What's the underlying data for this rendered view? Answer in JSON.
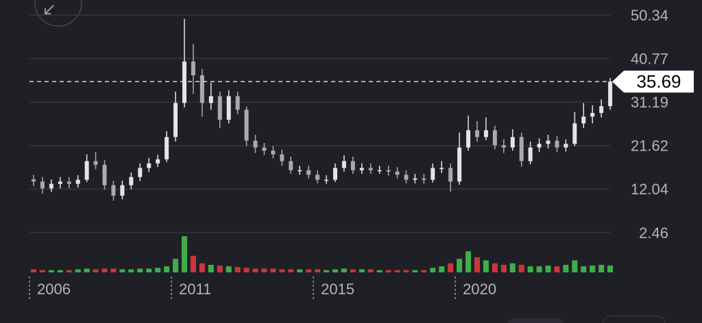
{
  "chart_data": {
    "type": "candlestick",
    "categories": [
      null,
      null,
      null,
      null,
      null,
      null,
      null,
      null,
      null,
      null,
      null,
      null,
      null,
      null,
      null,
      null,
      null,
      null,
      null,
      null,
      null,
      null,
      null,
      null,
      null,
      null,
      null,
      null,
      null,
      null,
      null,
      null,
      null,
      null,
      null,
      null,
      null,
      null,
      null,
      null,
      null,
      null,
      null,
      null,
      null,
      null,
      null,
      null,
      null,
      null,
      null,
      null,
      null,
      null,
      null,
      null,
      null,
      null,
      null,
      null,
      null,
      null,
      null,
      null,
      null,
      null
    ],
    "open": [
      14.2,
      13.7,
      12.2,
      13.2,
      13.7,
      13.2,
      14.1,
      18.2,
      17.4,
      12.9,
      10.6,
      12.9,
      14.7,
      16.7,
      17.7,
      18.6,
      23.5,
      31.0,
      40.1,
      37.1,
      31.0,
      32.5,
      27.3,
      32.5,
      29.5,
      22.7,
      21.2,
      20.5,
      19.7,
      18.2,
      16.2,
      16.2,
      15.2,
      14.1,
      14.1,
      16.7,
      18.2,
      16.2,
      16.7,
      16.2,
      16.2,
      15.9,
      15.2,
      14.1,
      14.4,
      14.1,
      16.7,
      16.7,
      13.7,
      21.2,
      25.0,
      23.5,
      25.0,
      21.7,
      21.2,
      23.5,
      18.2,
      21.2,
      22.0,
      22.7,
      21.2,
      22.0,
      26.5,
      28.0,
      28.8,
      30.3
    ],
    "high": [
      15.2,
      14.7,
      14.2,
      14.7,
      14.7,
      15.1,
      19.7,
      20.2,
      18.4,
      13.9,
      13.9,
      15.7,
      17.7,
      18.9,
      19.6,
      24.8,
      33.5,
      49.5,
      44.0,
      38.5,
      35.5,
      33.5,
      33.8,
      33.5,
      30.2,
      24.0,
      22.2,
      21.5,
      20.7,
      19.2,
      17.2,
      17.2,
      16.2,
      15.1,
      17.7,
      19.5,
      19.2,
      17.7,
      17.7,
      17.2,
      17.2,
      16.9,
      16.2,
      15.4,
      15.4,
      17.7,
      18.2,
      17.7,
      24.5,
      28.2,
      27.0,
      27.8,
      26.0,
      23.0,
      25.2,
      24.5,
      22.5,
      23.2,
      24.0,
      23.7,
      23.0,
      29.0,
      31.0,
      30.5,
      31.8,
      36.5
    ],
    "low": [
      12.7,
      11.0,
      11.4,
      12.2,
      12.2,
      12.4,
      13.6,
      16.4,
      11.9,
      9.5,
      9.8,
      12.0,
      13.8,
      15.8,
      16.9,
      18.0,
      22.5,
      30.0,
      33.0,
      28.0,
      29.5,
      25.5,
      26.5,
      28.5,
      21.5,
      20.0,
      19.5,
      18.8,
      17.2,
      15.4,
      15.2,
      14.4,
      13.3,
      13.2,
      13.6,
      15.9,
      15.4,
      15.4,
      15.4,
      15.4,
      15.0,
      14.4,
      13.3,
      13.3,
      13.2,
      13.5,
      15.6,
      11.5,
      13.0,
      20.5,
      22.5,
      22.8,
      20.8,
      20.0,
      20.5,
      17.0,
      17.5,
      20.2,
      21.0,
      20.2,
      20.3,
      21.5,
      25.5,
      26.5,
      27.8,
      29.5
    ],
    "close": [
      13.7,
      12.2,
      13.2,
      13.7,
      13.2,
      14.1,
      18.2,
      17.4,
      12.9,
      10.6,
      12.9,
      14.7,
      16.7,
      17.7,
      18.6,
      23.5,
      31.0,
      40.1,
      37.1,
      31.0,
      32.5,
      27.3,
      32.5,
      29.5,
      22.7,
      21.2,
      20.5,
      19.7,
      18.2,
      16.2,
      16.2,
      15.2,
      14.1,
      14.1,
      16.7,
      18.2,
      16.2,
      16.7,
      16.2,
      16.2,
      15.9,
      15.2,
      14.1,
      14.4,
      14.1,
      16.7,
      16.7,
      13.7,
      21.2,
      25.0,
      23.5,
      25.0,
      21.7,
      21.2,
      23.5,
      18.2,
      21.2,
      22.0,
      22.7,
      21.2,
      22.0,
      26.5,
      28.0,
      28.8,
      30.3,
      35.7
    ],
    "volume": [
      4,
      3,
      3,
      3,
      3,
      4,
      5,
      4,
      5,
      5,
      4,
      4,
      5,
      5,
      6,
      8,
      18,
      48,
      22,
      12,
      10,
      9,
      8,
      7,
      6,
      5,
      5,
      5,
      4,
      4,
      4,
      4,
      4,
      3,
      4,
      5,
      4,
      4,
      4,
      3,
      3,
      3,
      3,
      3,
      3,
      6,
      8,
      12,
      18,
      28,
      20,
      16,
      12,
      10,
      12,
      10,
      8,
      8,
      9,
      8,
      10,
      16,
      8,
      9,
      10,
      9
    ],
    "volume_lim": [
      0,
      50
    ],
    "up_color": "#e4e4e6",
    "down_color": "#a9a9ae",
    "volume_up_color": "#3fae4a",
    "volume_down_color": "#c8373d",
    "ylim": [
      2.46,
      50.34
    ],
    "yticks": [
      50.34,
      40.77,
      31.19,
      21.62,
      12.04,
      2.46
    ],
    "xticks": [
      {
        "value": 0,
        "label": "2006"
      },
      {
        "value": 16,
        "label": "2011"
      },
      {
        "value": 32,
        "label": "2015"
      },
      {
        "value": 48,
        "label": "2020"
      }
    ],
    "last_price": 35.69,
    "grid": true
  }
}
